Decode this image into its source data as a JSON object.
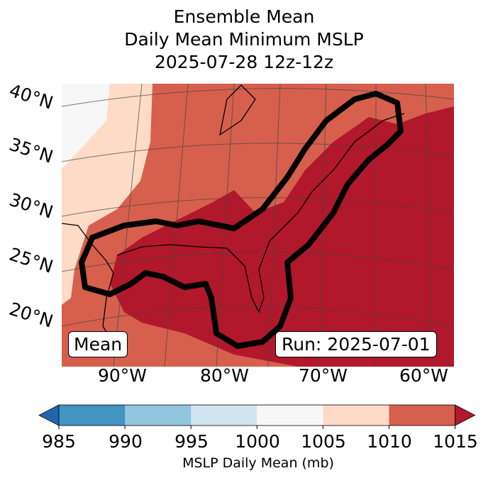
{
  "title": {
    "line1": "Ensemble Mean",
    "line2": "Daily Mean Minimum MSLP",
    "line3": "2025-07-28 12z-12z"
  },
  "map": {
    "lat_labels": [
      "40°N",
      "35°N",
      "30°N",
      "25°N",
      "20°N"
    ],
    "lon_labels": [
      "90°W",
      "80°W",
      "70°W",
      "60°W"
    ],
    "mean_label": "Mean",
    "run_label": "Run: 2025-07-01"
  },
  "colorbar": {
    "ticks": [
      "985",
      "990",
      "995",
      "1000",
      "1005",
      "1010",
      "1015"
    ],
    "label": "MSLP Daily Mean (mb)",
    "colors": [
      "#2166ac",
      "#4393c3",
      "#92c5de",
      "#d1e5f0",
      "#f7f7f7",
      "#fddbc7",
      "#d6604d",
      "#b2182b"
    ]
  }
}
